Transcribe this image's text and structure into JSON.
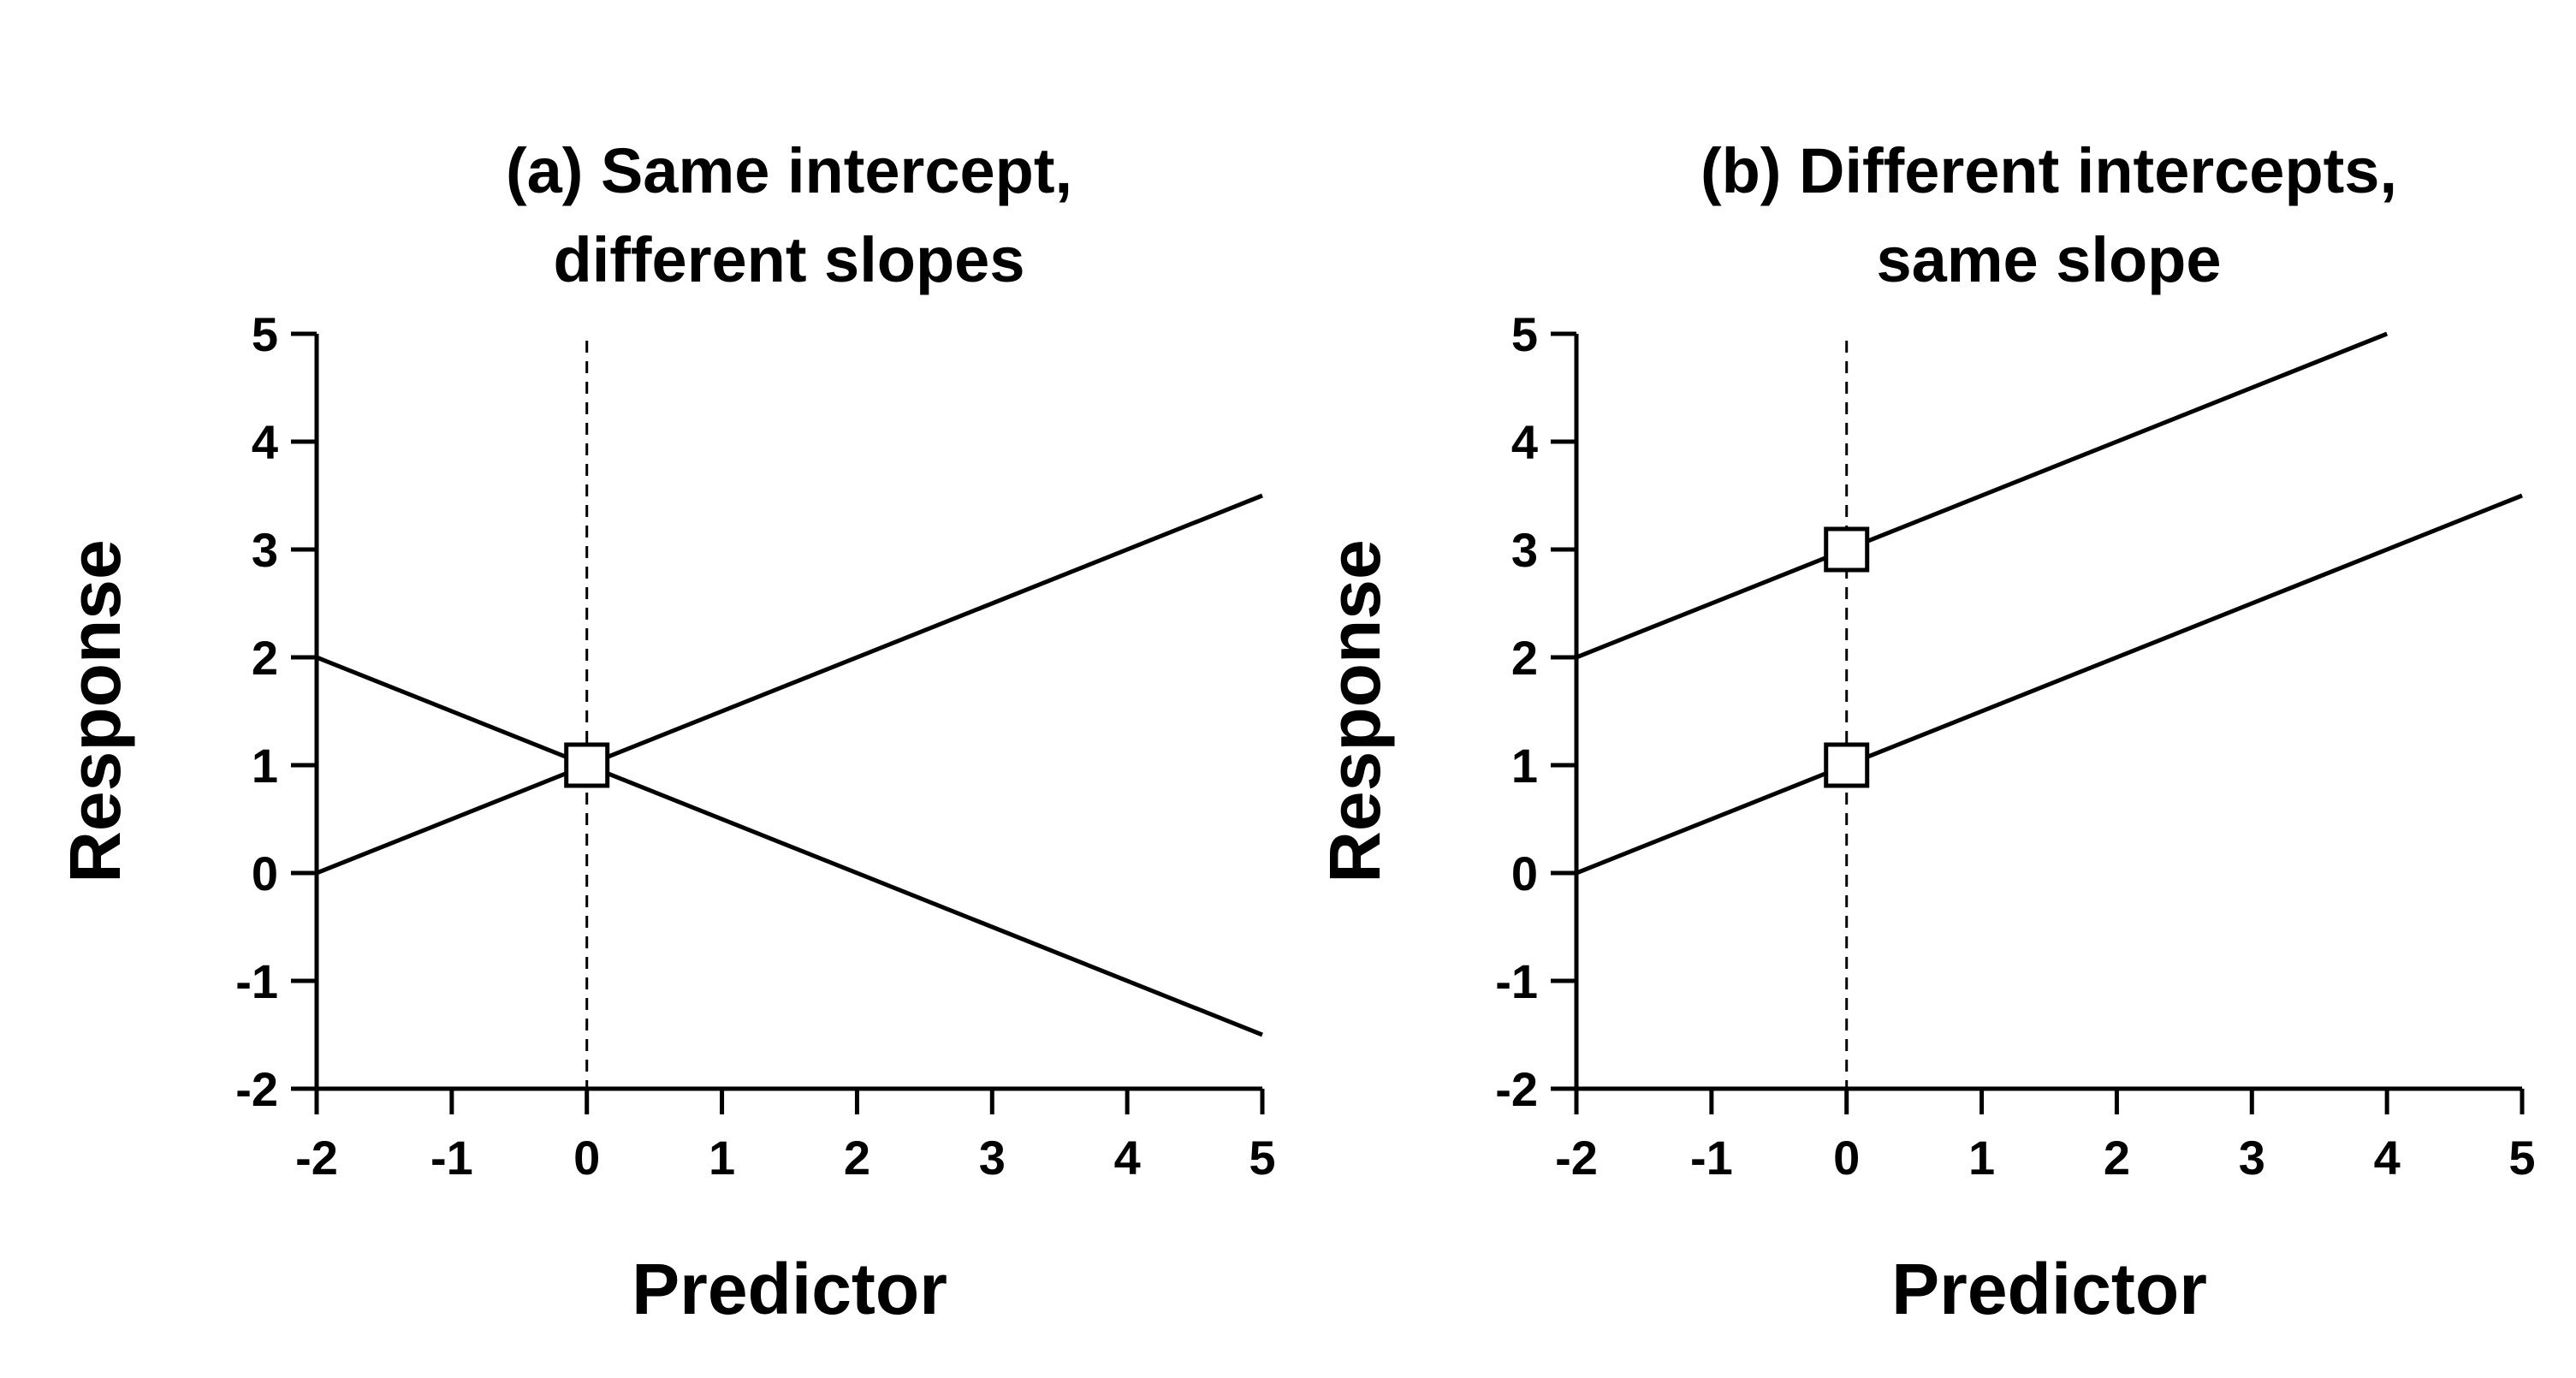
{
  "chart_data": [
    {
      "type": "line",
      "title_lines": [
        "(a) Same intercept,",
        "different slopes"
      ],
      "xlabel": "Predictor",
      "ylabel": "Response",
      "xlim": [
        -2,
        5
      ],
      "ylim": [
        -2,
        5
      ],
      "xticks": [
        "-2",
        "-1",
        "0",
        "1",
        "2",
        "3",
        "4",
        "5"
      ],
      "yticks": [
        "-2",
        "-1",
        "0",
        "1",
        "2",
        "3",
        "4",
        "5"
      ],
      "grid": false,
      "reference_line": {
        "x": 0,
        "style": "dashed"
      },
      "series": [
        {
          "intercept": 1,
          "slope": 0.5,
          "x": [
            -2,
            5
          ],
          "y": [
            0,
            3.5
          ]
        },
        {
          "intercept": 1,
          "slope": -0.5,
          "x": [
            -2,
            5
          ],
          "y": [
            2,
            -1.5
          ]
        }
      ],
      "markers": [
        {
          "x": 0,
          "y": 1,
          "shape": "open-square"
        }
      ]
    },
    {
      "type": "line",
      "title_lines": [
        "(b) Different intercepts,",
        "same slope"
      ],
      "xlabel": "Predictor",
      "ylabel": "Response",
      "xlim": [
        -2,
        5
      ],
      "ylim": [
        -2,
        5
      ],
      "xticks": [
        "-2",
        "-1",
        "0",
        "1",
        "2",
        "3",
        "4",
        "5"
      ],
      "yticks": [
        "-2",
        "-1",
        "0",
        "1",
        "2",
        "3",
        "4",
        "5"
      ],
      "grid": false,
      "reference_line": {
        "x": 0,
        "style": "dashed"
      },
      "series": [
        {
          "intercept": 3,
          "slope": 0.5,
          "x": [
            -2,
            4
          ],
          "y": [
            2,
            5
          ]
        },
        {
          "intercept": 1,
          "slope": 0.5,
          "x": [
            -2,
            5
          ],
          "y": [
            0,
            3.5
          ]
        }
      ],
      "markers": [
        {
          "x": 0,
          "y": 3,
          "shape": "open-square"
        },
        {
          "x": 0,
          "y": 1,
          "shape": "open-square"
        }
      ]
    }
  ]
}
